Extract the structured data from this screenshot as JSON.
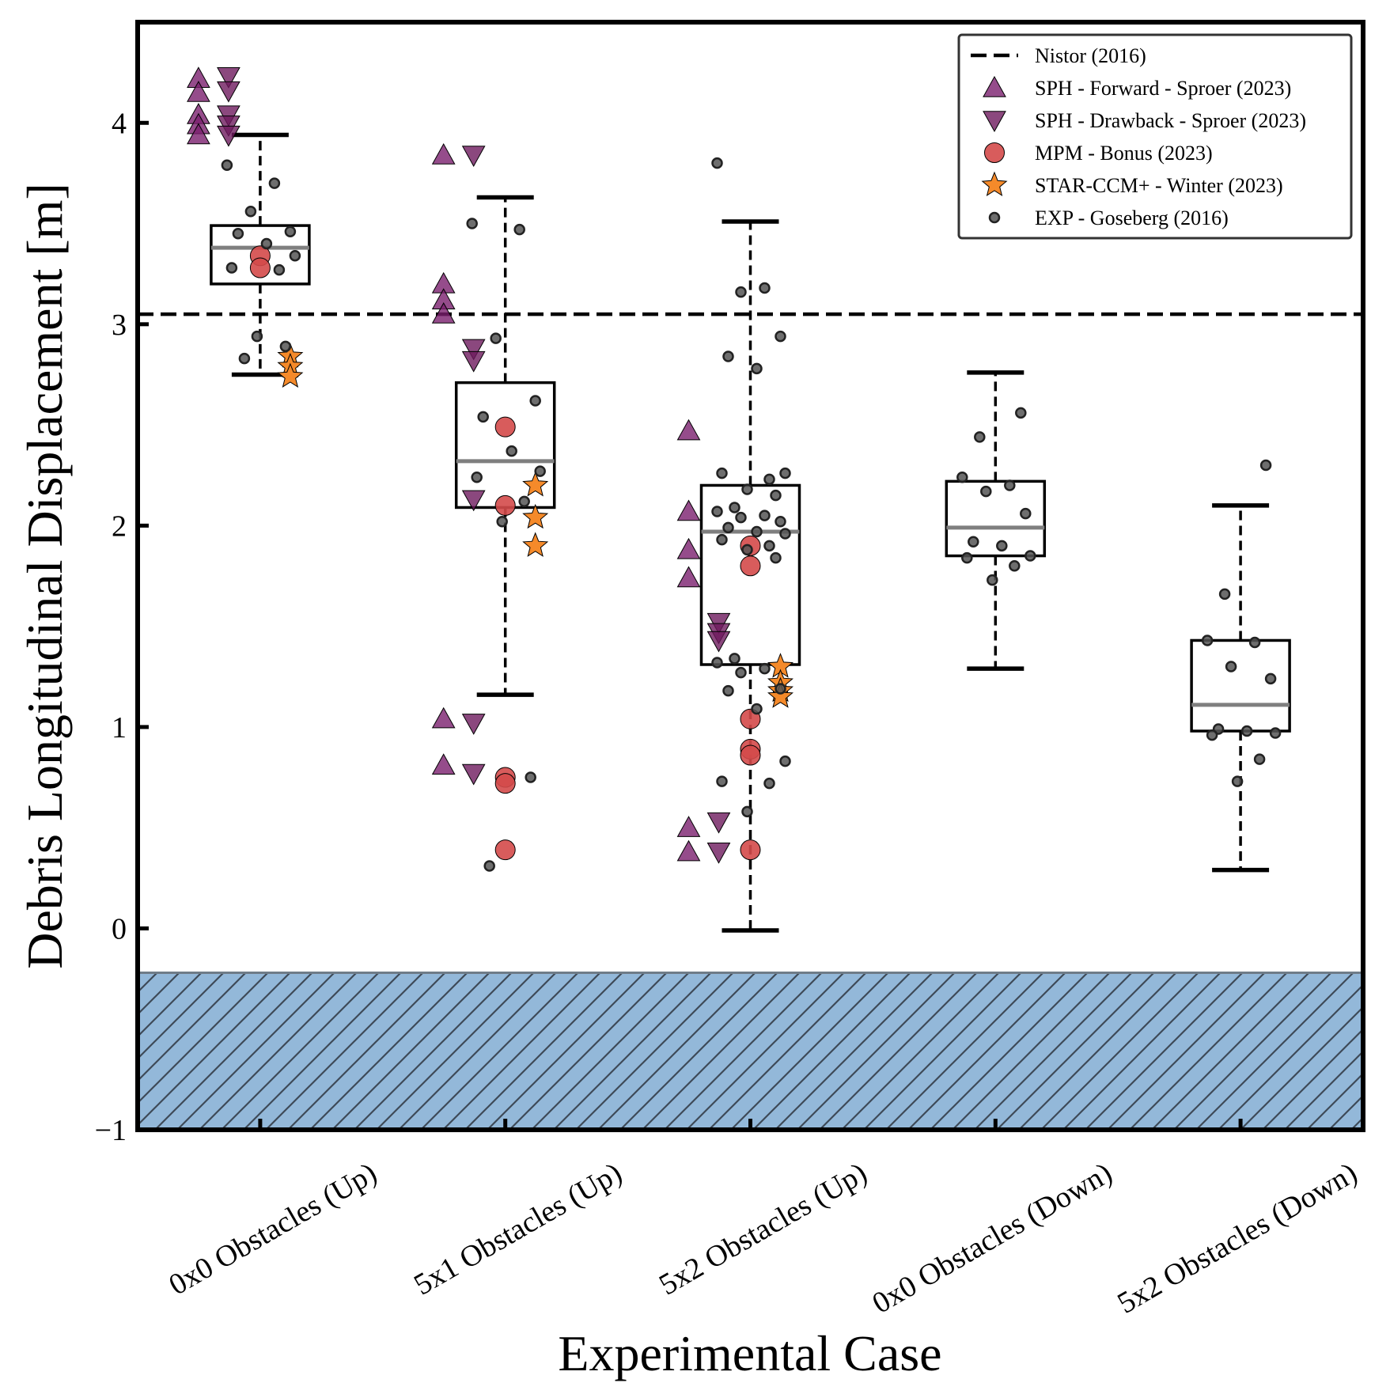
{
  "chart_data": {
    "type": "box",
    "xlabel": "Experimental Case",
    "ylabel": "Debris Longitudinal Displacement [m]",
    "ylim": [
      -1,
      4.5
    ],
    "yticks": [
      -1,
      0,
      1,
      2,
      3,
      4
    ],
    "ytick_labels": [
      "−1",
      "0",
      "1",
      "2",
      "3",
      "4"
    ],
    "grid": false,
    "legend_position": "top-right",
    "categories": [
      "0x0 Obstacles (Up)",
      "5x1 Obstacles (Up)",
      "5x2 Obstacles (Up)",
      "0x0 Obstacles (Down)",
      "5x2 Obstacles (Down)"
    ],
    "boxes": [
      {
        "whislo": 2.75,
        "q1": 3.2,
        "med": 3.38,
        "q3": 3.49,
        "whishi": 3.94
      },
      {
        "whislo": 1.16,
        "q1": 2.09,
        "med": 2.32,
        "q3": 2.71,
        "whishi": 3.63
      },
      {
        "whislo": -0.01,
        "q1": 1.31,
        "med": 1.97,
        "q3": 2.2,
        "whishi": 3.51
      },
      {
        "whislo": 1.29,
        "q1": 1.85,
        "med": 1.99,
        "q3": 2.22,
        "whishi": 2.76
      },
      {
        "whislo": 0.29,
        "q1": 0.98,
        "med": 1.11,
        "q3": 1.43,
        "whishi": 2.1
      }
    ],
    "reference_line": {
      "name": "Nistor (2016)",
      "y": 3.05,
      "color": "#000000"
    },
    "shaded_region": {
      "y_from": -1,
      "y_to": -0.22,
      "color": "#93b8d9"
    },
    "series": [
      {
        "name": "SPH - Forward - Sproer (2023)",
        "marker": "triangle-up",
        "color": "#7b1f6e",
        "points": [
          {
            "x": 0,
            "y": 4.22
          },
          {
            "x": 0,
            "y": 4.15
          },
          {
            "x": 0,
            "y": 4.04
          },
          {
            "x": 0,
            "y": 3.99
          },
          {
            "x": 0,
            "y": 3.94
          },
          {
            "x": 1,
            "y": 3.84
          },
          {
            "x": 1,
            "y": 3.2
          },
          {
            "x": 1,
            "y": 3.12
          },
          {
            "x": 1,
            "y": 3.05
          },
          {
            "x": 1,
            "y": 1.04
          },
          {
            "x": 1,
            "y": 0.81
          },
          {
            "x": 2,
            "y": 2.47
          },
          {
            "x": 2,
            "y": 2.07
          },
          {
            "x": 2,
            "y": 1.88
          },
          {
            "x": 2,
            "y": 1.74
          },
          {
            "x": 2,
            "y": 0.5
          },
          {
            "x": 2,
            "y": 0.38
          }
        ]
      },
      {
        "name": "SPH - Drawback - Sproer (2023)",
        "marker": "triangle-down",
        "color": "#6e1a5e",
        "points": [
          {
            "x": 0,
            "y": 4.23
          },
          {
            "x": 0,
            "y": 4.16
          },
          {
            "x": 0,
            "y": 4.04
          },
          {
            "x": 0,
            "y": 3.99
          },
          {
            "x": 0,
            "y": 3.94
          },
          {
            "x": 1,
            "y": 3.84
          },
          {
            "x": 1,
            "y": 2.88
          },
          {
            "x": 1,
            "y": 2.82
          },
          {
            "x": 1,
            "y": 2.13
          },
          {
            "x": 1,
            "y": 1.02
          },
          {
            "x": 1,
            "y": 0.77
          },
          {
            "x": 2,
            "y": 1.52
          },
          {
            "x": 2,
            "y": 1.47
          },
          {
            "x": 2,
            "y": 1.43
          },
          {
            "x": 2,
            "y": 0.53
          },
          {
            "x": 2,
            "y": 0.38
          }
        ]
      },
      {
        "name": "MPM - Bonus (2023)",
        "marker": "circle",
        "color": "#d44a4a",
        "points": [
          {
            "x": 0,
            "y": 3.34
          },
          {
            "x": 0,
            "y": 3.28
          },
          {
            "x": 1,
            "y": 2.49
          },
          {
            "x": 1,
            "y": 2.1
          },
          {
            "x": 1,
            "y": 0.75
          },
          {
            "x": 1,
            "y": 0.72
          },
          {
            "x": 1,
            "y": 0.39
          },
          {
            "x": 2,
            "y": 1.9
          },
          {
            "x": 2,
            "y": 1.8
          },
          {
            "x": 2,
            "y": 1.04
          },
          {
            "x": 2,
            "y": 0.89
          },
          {
            "x": 2,
            "y": 0.86
          },
          {
            "x": 2,
            "y": 0.39
          }
        ]
      },
      {
        "name": "STAR-CCM+ - Winter (2023)",
        "marker": "star",
        "color": "#f58a2a",
        "points": [
          {
            "x": 0,
            "y": 2.84
          },
          {
            "x": 0,
            "y": 2.79
          },
          {
            "x": 0,
            "y": 2.74
          },
          {
            "x": 1,
            "y": 2.2
          },
          {
            "x": 1,
            "y": 2.04
          },
          {
            "x": 1,
            "y": 1.9
          },
          {
            "x": 2,
            "y": 1.3
          },
          {
            "x": 2,
            "y": 1.22
          },
          {
            "x": 2,
            "y": 1.18
          },
          {
            "x": 2,
            "y": 1.15
          }
        ]
      },
      {
        "name": "EXP - Goseberg (2016)",
        "marker": "small-circle",
        "color": "#555555",
        "points": [
          {
            "x": 0,
            "y": 3.79
          },
          {
            "x": 0,
            "y": 3.7
          },
          {
            "x": 0,
            "y": 3.56
          },
          {
            "x": 0,
            "y": 3.46
          },
          {
            "x": 0,
            "y": 3.45
          },
          {
            "x": 0,
            "y": 3.4
          },
          {
            "x": 0,
            "y": 3.34
          },
          {
            "x": 0,
            "y": 3.28
          },
          {
            "x": 0,
            "y": 3.27
          },
          {
            "x": 0,
            "y": 2.94
          },
          {
            "x": 0,
            "y": 2.89
          },
          {
            "x": 0,
            "y": 2.83
          },
          {
            "x": 1,
            "y": 3.5
          },
          {
            "x": 1,
            "y": 3.47
          },
          {
            "x": 1,
            "y": 2.93
          },
          {
            "x": 1,
            "y": 2.62
          },
          {
            "x": 1,
            "y": 2.54
          },
          {
            "x": 1,
            "y": 2.37
          },
          {
            "x": 1,
            "y": 2.27
          },
          {
            "x": 1,
            "y": 2.24
          },
          {
            "x": 1,
            "y": 2.12
          },
          {
            "x": 1,
            "y": 2.02
          },
          {
            "x": 1,
            "y": 0.75
          },
          {
            "x": 1,
            "y": 0.31
          },
          {
            "x": 2,
            "y": 3.8
          },
          {
            "x": 2,
            "y": 3.18
          },
          {
            "x": 2,
            "y": 3.16
          },
          {
            "x": 2,
            "y": 2.94
          },
          {
            "x": 2,
            "y": 2.84
          },
          {
            "x": 2,
            "y": 2.78
          },
          {
            "x": 2,
            "y": 2.26
          },
          {
            "x": 2,
            "y": 2.26
          },
          {
            "x": 2,
            "y": 2.23
          },
          {
            "x": 2,
            "y": 2.18
          },
          {
            "x": 2,
            "y": 2.15
          },
          {
            "x": 2,
            "y": 2.09
          },
          {
            "x": 2,
            "y": 2.07
          },
          {
            "x": 2,
            "y": 2.05
          },
          {
            "x": 2,
            "y": 2.04
          },
          {
            "x": 2,
            "y": 2.02
          },
          {
            "x": 2,
            "y": 1.99
          },
          {
            "x": 2,
            "y": 1.97
          },
          {
            "x": 2,
            "y": 1.96
          },
          {
            "x": 2,
            "y": 1.93
          },
          {
            "x": 2,
            "y": 1.9
          },
          {
            "x": 2,
            "y": 1.88
          },
          {
            "x": 2,
            "y": 1.84
          },
          {
            "x": 2,
            "y": 1.34
          },
          {
            "x": 2,
            "y": 1.32
          },
          {
            "x": 2,
            "y": 1.29
          },
          {
            "x": 2,
            "y": 1.27
          },
          {
            "x": 2,
            "y": 1.19
          },
          {
            "x": 2,
            "y": 1.18
          },
          {
            "x": 2,
            "y": 1.09
          },
          {
            "x": 2,
            "y": 0.83
          },
          {
            "x": 2,
            "y": 0.73
          },
          {
            "x": 2,
            "y": 0.72
          },
          {
            "x": 2,
            "y": 0.58
          },
          {
            "x": 3,
            "y": 2.56
          },
          {
            "x": 3,
            "y": 2.44
          },
          {
            "x": 3,
            "y": 2.24
          },
          {
            "x": 3,
            "y": 2.2
          },
          {
            "x": 3,
            "y": 2.17
          },
          {
            "x": 3,
            "y": 2.06
          },
          {
            "x": 3,
            "y": 1.92
          },
          {
            "x": 3,
            "y": 1.9
          },
          {
            "x": 3,
            "y": 1.85
          },
          {
            "x": 3,
            "y": 1.84
          },
          {
            "x": 3,
            "y": 1.8
          },
          {
            "x": 3,
            "y": 1.73
          },
          {
            "x": 4,
            "y": 2.3
          },
          {
            "x": 4,
            "y": 1.66
          },
          {
            "x": 4,
            "y": 1.43
          },
          {
            "x": 4,
            "y": 1.42
          },
          {
            "x": 4,
            "y": 1.3
          },
          {
            "x": 4,
            "y": 1.24
          },
          {
            "x": 4,
            "y": 0.99
          },
          {
            "x": 4,
            "y": 0.98
          },
          {
            "x": 4,
            "y": 0.97
          },
          {
            "x": 4,
            "y": 0.96
          },
          {
            "x": 4,
            "y": 0.84
          },
          {
            "x": 4,
            "y": 0.73
          }
        ]
      }
    ]
  }
}
